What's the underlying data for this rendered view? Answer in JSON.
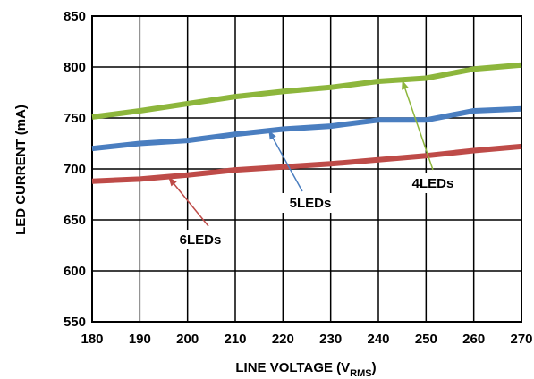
{
  "chart_data": {
    "type": "line",
    "title": "",
    "xlabel": "LINE VOLTAGE (V",
    "xlabel_subscript": "RMS",
    "xlabel_suffix": ")",
    "ylabel": "LED CURRENT (mA)",
    "xlim": [
      180,
      270
    ],
    "ylim": [
      550,
      850
    ],
    "x_ticks": [
      180,
      190,
      200,
      210,
      220,
      230,
      240,
      250,
      260,
      270
    ],
    "y_ticks": [
      550,
      600,
      650,
      700,
      750,
      800,
      850
    ],
    "grid": true,
    "legend": "none",
    "series": [
      {
        "name": "4LEDs",
        "color": "#8DB63C",
        "x": [
          180,
          190,
          200,
          210,
          220,
          230,
          240,
          250,
          260,
          270
        ],
        "values": [
          751,
          757,
          764,
          771,
          776,
          780,
          786,
          789,
          798,
          802
        ]
      },
      {
        "name": "5LEDs",
        "color": "#4A7EC0",
        "x": [
          180,
          190,
          200,
          210,
          220,
          230,
          240,
          250,
          260,
          270
        ],
        "values": [
          720,
          725,
          728,
          734,
          739,
          742,
          748,
          748,
          757,
          759
        ]
      },
      {
        "name": "6LEDs",
        "color": "#BE4B48",
        "x": [
          180,
          190,
          200,
          210,
          220,
          230,
          240,
          250,
          260,
          270
        ],
        "values": [
          688,
          690,
          694,
          699,
          702,
          705,
          709,
          713,
          718,
          722
        ]
      }
    ],
    "annotations": [
      {
        "text": "4LEDs",
        "series": "4LEDs",
        "arrow_to": [
          245,
          787
        ]
      },
      {
        "text": "5LEDs",
        "series": "5LEDs",
        "arrow_to": [
          217,
          738
        ]
      },
      {
        "text": "6LEDs",
        "series": "6LEDs",
        "arrow_to": [
          196,
          692
        ]
      }
    ]
  }
}
